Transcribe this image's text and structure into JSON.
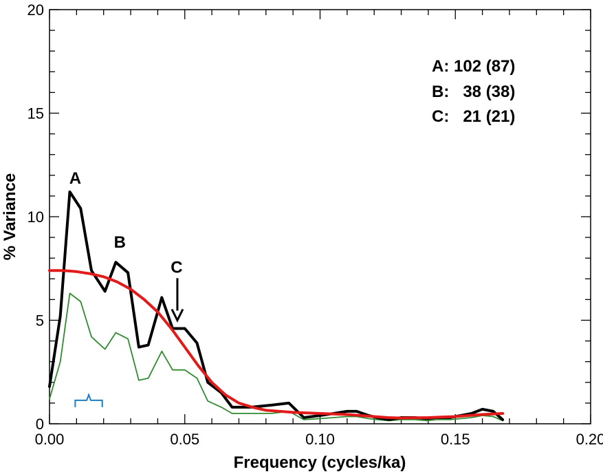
{
  "chart_data": {
    "type": "line",
    "xlabel": "Frequency (cycles/ka)",
    "ylabel": "% Variance",
    "xlim": [
      0,
      0.2
    ],
    "ylim": [
      0,
      20
    ],
    "x_ticks": [
      "0.00",
      "0.05",
      "0.10",
      "0.15",
      "0.20"
    ],
    "y_ticks": [
      "0",
      "5",
      "10",
      "15",
      "20"
    ],
    "grid": false,
    "colors": {
      "spectrum": "#000000",
      "lower": "#2e8b2e",
      "red": "#e31a1a",
      "bandwidth": "#1a7fc1"
    },
    "series": [
      {
        "color": "#000000",
        "x": [
          0.0,
          0.004,
          0.0075,
          0.0115,
          0.0155,
          0.0205,
          0.0245,
          0.029,
          0.033,
          0.0365,
          0.0415,
          0.0455,
          0.05,
          0.0545,
          0.0585,
          0.0635,
          0.0675,
          0.0745,
          0.082,
          0.0885,
          0.094,
          0.1,
          0.105,
          0.11,
          0.1135,
          0.118,
          0.121,
          0.1255,
          0.13,
          0.135,
          0.1395,
          0.143,
          0.148,
          0.152,
          0.156,
          0.16,
          0.164,
          0.1675
        ],
        "y": [
          1.8,
          5.2,
          11.2,
          10.4,
          7.4,
          6.4,
          7.8,
          7.3,
          3.7,
          3.8,
          6.1,
          4.6,
          4.6,
          3.9,
          2.0,
          1.5,
          0.8,
          0.8,
          0.9,
          1.0,
          0.3,
          0.4,
          0.5,
          0.6,
          0.6,
          0.4,
          0.3,
          0.2,
          0.3,
          0.3,
          0.25,
          0.3,
          0.3,
          0.4,
          0.5,
          0.7,
          0.6,
          0.2
        ]
      },
      {
        "color": "#2e8b2e",
        "x": [
          0.0,
          0.004,
          0.0075,
          0.0115,
          0.0155,
          0.0205,
          0.0245,
          0.029,
          0.033,
          0.0365,
          0.0415,
          0.0455,
          0.05,
          0.0545,
          0.0585,
          0.0635,
          0.0675,
          0.0745,
          0.082,
          0.0885,
          0.094,
          0.1,
          0.105,
          0.11,
          0.1135,
          0.118,
          0.121,
          0.1255,
          0.13,
          0.135,
          0.1395,
          0.143,
          0.148,
          0.152,
          0.156,
          0.16,
          0.164,
          0.1675
        ],
        "y": [
          1.2,
          3.0,
          6.3,
          5.9,
          4.2,
          3.6,
          4.4,
          4.1,
          2.1,
          2.2,
          3.5,
          2.6,
          2.6,
          2.2,
          1.1,
          0.8,
          0.5,
          0.5,
          0.5,
          0.6,
          0.2,
          0.25,
          0.3,
          0.35,
          0.35,
          0.25,
          0.2,
          0.15,
          0.2,
          0.2,
          0.15,
          0.2,
          0.2,
          0.25,
          0.3,
          0.4,
          0.35,
          0.15
        ]
      },
      {
        "color": "#e31a1a",
        "x": [
          0.0,
          0.005,
          0.01,
          0.015,
          0.02,
          0.025,
          0.03,
          0.035,
          0.04,
          0.045,
          0.05,
          0.055,
          0.06,
          0.065,
          0.07,
          0.075,
          0.08,
          0.09,
          0.1,
          0.11,
          0.12,
          0.125,
          0.13,
          0.14,
          0.15,
          0.16,
          0.1675
        ],
        "y": [
          7.4,
          7.4,
          7.35,
          7.25,
          7.1,
          6.85,
          6.5,
          6.0,
          5.4,
          4.6,
          3.7,
          2.8,
          2.0,
          1.4,
          1.0,
          0.8,
          0.65,
          0.55,
          0.5,
          0.45,
          0.35,
          0.3,
          0.28,
          0.3,
          0.35,
          0.45,
          0.5
        ]
      }
    ],
    "peaks": [
      {
        "label": "A",
        "x": 0.0095,
        "y": 11.6
      },
      {
        "label": "B",
        "x": 0.026,
        "y": 8.5
      },
      {
        "label": "C",
        "x": 0.047,
        "y": 7.3
      }
    ],
    "legend_lines": [
      "A: 102 (87)",
      "B:   38 (38)",
      "C:   21 (21)"
    ],
    "bandwidth_marker": {
      "x_start": 0.0095,
      "x_end": 0.0195,
      "y": 1.2
    }
  }
}
